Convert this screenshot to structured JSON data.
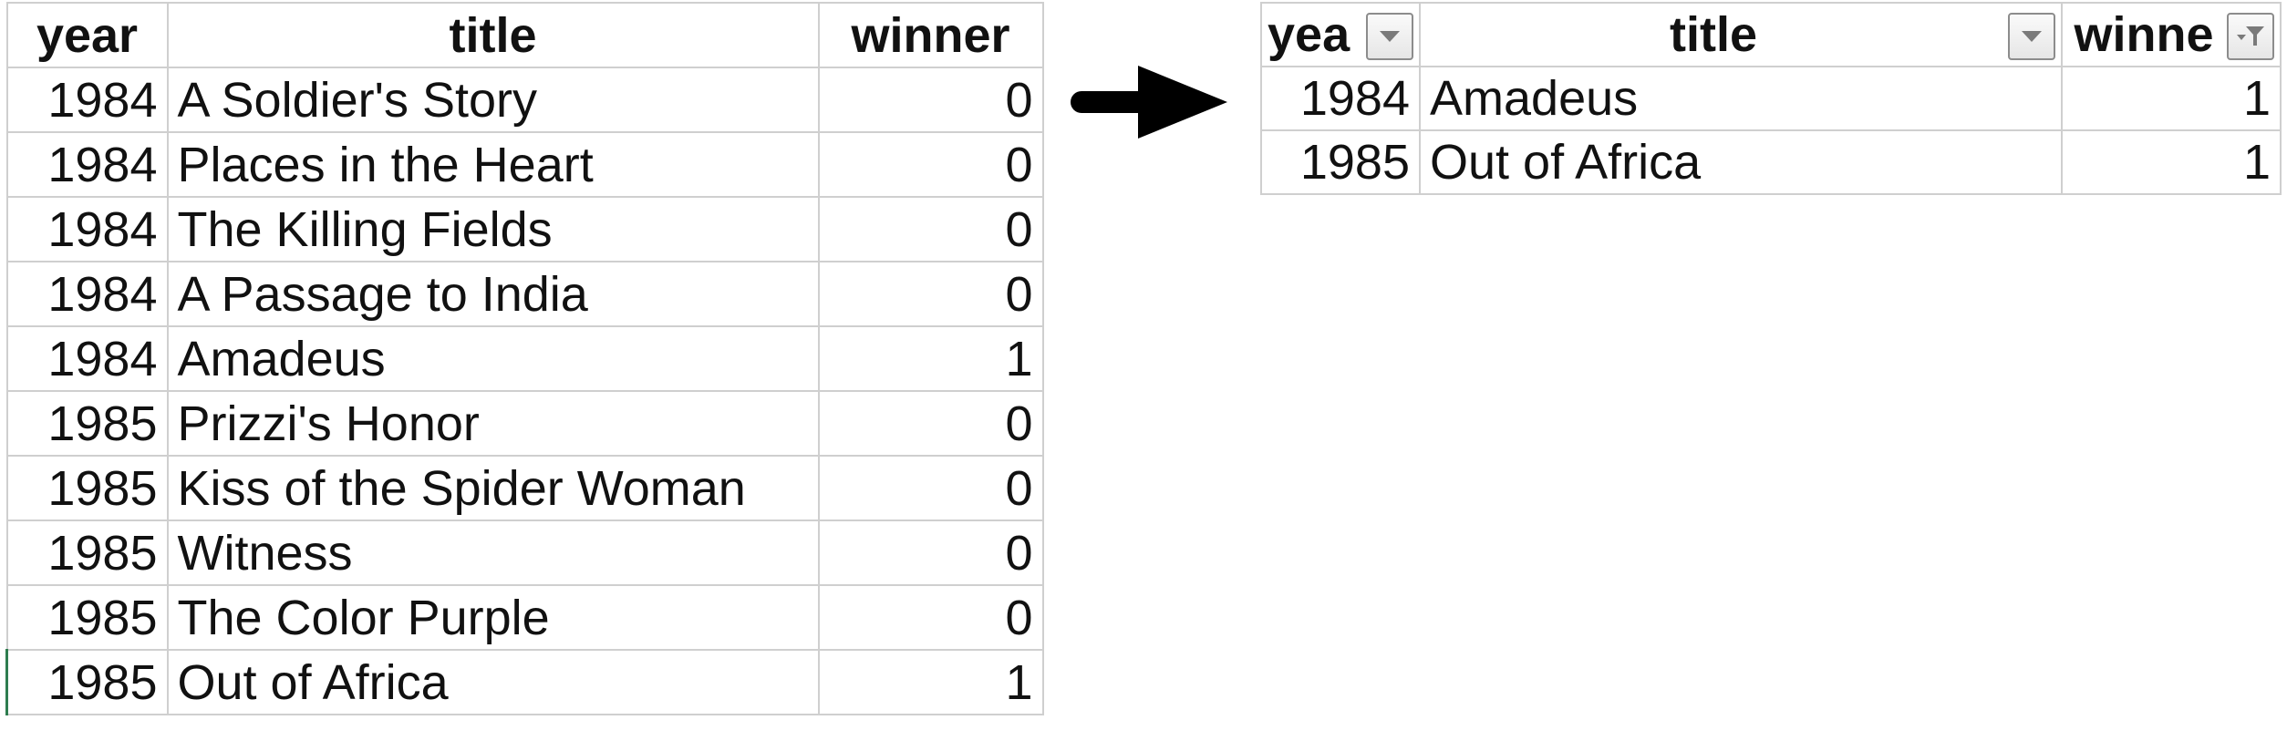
{
  "left_table": {
    "headers": {
      "year": "year",
      "title": "title",
      "winner": "winner"
    },
    "rows": [
      {
        "year": "1984",
        "title": "A Soldier's Story",
        "winner": "0"
      },
      {
        "year": "1984",
        "title": "Places in the Heart",
        "winner": "0"
      },
      {
        "year": "1984",
        "title": "The Killing Fields",
        "winner": "0"
      },
      {
        "year": "1984",
        "title": "A Passage to India",
        "winner": "0"
      },
      {
        "year": "1984",
        "title": "Amadeus",
        "winner": "1"
      },
      {
        "year": "1985",
        "title": "Prizzi's Honor",
        "winner": "0"
      },
      {
        "year": "1985",
        "title": "Kiss of the Spider Woman",
        "winner": "0"
      },
      {
        "year": "1985",
        "title": "Witness",
        "winner": "0"
      },
      {
        "year": "1985",
        "title": "The Color Purple",
        "winner": "0"
      },
      {
        "year": "1985",
        "title": "Out of Africa",
        "winner": "1"
      }
    ]
  },
  "right_table": {
    "headers": {
      "year": "yea",
      "title": "title",
      "winner": "winne"
    },
    "filter_icons": [
      "dropdown-arrow-icon",
      "dropdown-arrow-icon",
      "filter-active-icon"
    ],
    "rows": [
      {
        "year": "1984",
        "title": "Amadeus",
        "winner": "1"
      },
      {
        "year": "1985",
        "title": "Out of Africa",
        "winner": "1"
      }
    ]
  },
  "colors": {
    "grid": "#cfcfcf",
    "arrow": "#000000",
    "selection_edge": "#2e7d4f"
  }
}
